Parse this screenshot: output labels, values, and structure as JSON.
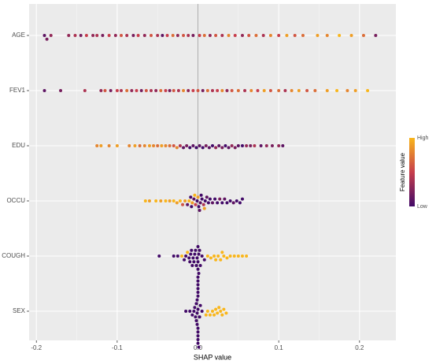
{
  "chart_data": {
    "type": "beeswarm",
    "x_label": "SHAP value",
    "xlim": [
      -0.209,
      0.245
    ],
    "xticks": [
      -0.2,
      -0.1,
      {
        "value": 0,
        "label": "0.0"
      },
      0.1,
      0.2
    ],
    "minor_xticks": [
      -0.15,
      -0.05,
      0.05,
      0.15
    ],
    "grid": true,
    "legend": {
      "title": "Feature value",
      "high": "High",
      "low": "Low",
      "position": "right"
    },
    "color_scale": [
      "#420a68",
      "#c73e4c",
      "#f9b61b"
    ],
    "series": [
      {
        "name": "AGE",
        "values": [
          -0.19,
          -0.187,
          -0.182,
          -0.16,
          -0.152,
          -0.145,
          -0.138,
          -0.13,
          -0.125,
          -0.118,
          -0.11,
          -0.102,
          -0.095,
          -0.088,
          -0.08,
          -0.074,
          -0.066,
          -0.058,
          -0.05,
          -0.044,
          -0.038,
          -0.031,
          -0.025,
          -0.018,
          -0.012,
          -0.006,
          0.002,
          0.008,
          0.015,
          0.022,
          0.03,
          0.038,
          0.046,
          0.055,
          0.063,
          0.072,
          0.081,
          0.09,
          0.1,
          0.11,
          0.12,
          0.13,
          0.148,
          0.16,
          0.175,
          0.19,
          0.205,
          0.22
        ],
        "feature_values": [
          0.1,
          0.2,
          0.3,
          0.3,
          0.4,
          0.2,
          0.5,
          0.3,
          0.4,
          0.2,
          0.5,
          0.3,
          0.6,
          0.4,
          0.2,
          0.5,
          0.3,
          0.6,
          0.4,
          0.1,
          0.5,
          0.7,
          0.3,
          0.6,
          0.4,
          0.2,
          0.5,
          0.7,
          0.3,
          0.6,
          0.4,
          0.8,
          0.5,
          0.3,
          0.6,
          0.7,
          0.4,
          0.8,
          0.5,
          0.9,
          0.6,
          0.7,
          0.9,
          0.8,
          1.0,
          0.9,
          0.7,
          0.2
        ]
      },
      {
        "name": "FEV1",
        "values": [
          -0.19,
          -0.17,
          -0.14,
          -0.12,
          -0.115,
          -0.108,
          -0.1,
          -0.095,
          -0.088,
          -0.082,
          -0.076,
          -0.07,
          -0.064,
          -0.058,
          -0.052,
          -0.046,
          -0.04,
          -0.035,
          -0.03,
          -0.024,
          -0.018,
          -0.012,
          -0.006,
          0,
          0.006,
          0.012,
          0.018,
          0.024,
          0.03,
          0.036,
          0.042,
          0.05,
          0.058,
          0.066,
          0.074,
          0.082,
          0.09,
          0.1,
          0.108,
          0.116,
          0.125,
          0.135,
          0.145,
          0.16,
          0.172,
          0.185,
          0.195,
          0.21
        ],
        "feature_values": [
          0.1,
          0.2,
          0.4,
          0.3,
          0.6,
          0.2,
          0.5,
          0.4,
          0.7,
          0.3,
          0.5,
          0.2,
          0.6,
          0.4,
          0.3,
          0.7,
          0.5,
          0.2,
          0.6,
          0.4,
          0.8,
          0.3,
          0.5,
          0.6,
          0.2,
          0.7,
          0.4,
          0.5,
          0.8,
          0.3,
          0.6,
          0.7,
          0.4,
          0.8,
          0.5,
          0.9,
          0.6,
          0.7,
          0.4,
          0.8,
          0.9,
          0.6,
          0.7,
          0.9,
          1.0,
          0.8,
          0.9,
          1.0
        ]
      },
      {
        "name": "EDU",
        "values": [
          -0.125,
          -0.12,
          -0.11,
          -0.1,
          -0.085,
          -0.078,
          -0.072,
          -0.066,
          -0.06,
          -0.055,
          -0.05,
          -0.045,
          -0.04,
          -0.035,
          -0.03,
          -0.026,
          -0.022,
          -0.018,
          -0.014,
          -0.01,
          -0.006,
          -0.002,
          0.002,
          0.006,
          0.01,
          0.014,
          0.018,
          0.022,
          0.026,
          0.03,
          0.034,
          0.038,
          0.042,
          0.046,
          0.05,
          0.055,
          0.06,
          0.065,
          0.07,
          0.078,
          0.085,
          0.092,
          0.1,
          0.105
        ],
        "feature_values": [
          0.8,
          0.9,
          0.8,
          0.9,
          0.8,
          0.9,
          0.7,
          0.8,
          0.9,
          0.8,
          0.7,
          0.9,
          0.8,
          0.7,
          0.6,
          0.8,
          0.4,
          0.1,
          0.2,
          0.0,
          0.1,
          0.0,
          0.1,
          0.0,
          0.2,
          0.1,
          0.0,
          0.3,
          0.1,
          0.2,
          0.0,
          0.1,
          0.3,
          0.2,
          0.1,
          0.0,
          0.3,
          0.2,
          0.4,
          0.1,
          0.3,
          0.2,
          0.3,
          0.1
        ]
      },
      {
        "name": "OCCU",
        "values": [
          -0.065,
          -0.06,
          -0.052,
          -0.046,
          -0.04,
          -0.035,
          -0.03,
          -0.026,
          -0.022,
          -0.019,
          -0.016,
          -0.013,
          -0.011,
          -0.009,
          -0.007,
          -0.005,
          -0.003,
          -0.001,
          0,
          0.001,
          0.003,
          0.005,
          0.007,
          0.009,
          0.011,
          0.013,
          0.015,
          0.018,
          0.021,
          0.024,
          0.027,
          0.03,
          0.033,
          0.036,
          0.04,
          0.044,
          0.048,
          0.052,
          0.055,
          -0.004,
          0.004,
          0.008,
          -0.008,
          0.002
        ],
        "feature_values": [
          1.0,
          0.9,
          1.0,
          0.9,
          1.0,
          0.9,
          1.0,
          0.9,
          1.0,
          0.6,
          0.9,
          0.1,
          1.0,
          0.0,
          0.9,
          0.1,
          0.5,
          0.0,
          0.9,
          0.0,
          0.1,
          0.0,
          0.4,
          0.0,
          0.1,
          0.0,
          0.0,
          0.1,
          0.0,
          0.0,
          0.2,
          0.0,
          0.1,
          0.0,
          0.0,
          0.1,
          0.0,
          0.0,
          0.0,
          1.0,
          0.0,
          0.9,
          0.0,
          0.1
        ]
      },
      {
        "name": "COUGH",
        "values": [
          -0.048,
          -0.03,
          -0.025,
          -0.02,
          -0.017,
          -0.015,
          -0.013,
          -0.011,
          -0.01,
          -0.009,
          -0.008,
          -0.007,
          -0.006,
          -0.005,
          -0.004,
          -0.003,
          -0.002,
          -0.001,
          0,
          0,
          0,
          0.001,
          0.002,
          0.003,
          0.005,
          0.008,
          0.012,
          0.016,
          0.02,
          0.025,
          0.028,
          0.032,
          0.036,
          0.04,
          0.045,
          0.05,
          0.055,
          0.06,
          0.022,
          0.03
        ],
        "feature_values": [
          0,
          0,
          0,
          1,
          0,
          0,
          1,
          0,
          0,
          0,
          0,
          0,
          0,
          0,
          0,
          0,
          0,
          0,
          0,
          0,
          0,
          0,
          0,
          0,
          0,
          0,
          1,
          1,
          1,
          1,
          1,
          1,
          1,
          1,
          1,
          1,
          1,
          1,
          1,
          1
        ]
      },
      {
        "name": "SEX",
        "values": [
          -0.015,
          -0.01,
          -0.007,
          -0.005,
          -0.004,
          -0.003,
          -0.002,
          -0.002,
          -0.001,
          -0.001,
          -0.001,
          0,
          0,
          0,
          0,
          0,
          0,
          0,
          0,
          0,
          0,
          0,
          0,
          0.001,
          0.001,
          0.002,
          0.003,
          0.005,
          0.012,
          0.015,
          0.018,
          0.02,
          0.022,
          0.024,
          0.026,
          0.028,
          0.03,
          0.032,
          0.035,
          0.01
        ],
        "feature_values": [
          0,
          0,
          0,
          0,
          0,
          0,
          0,
          0,
          0,
          0,
          0,
          0,
          0,
          0,
          0,
          0,
          0,
          0,
          0,
          0,
          0,
          0,
          0,
          0,
          0,
          0,
          0,
          0,
          1,
          1,
          1,
          1,
          1,
          1,
          1,
          1,
          1,
          1,
          1,
          1
        ]
      }
    ]
  }
}
